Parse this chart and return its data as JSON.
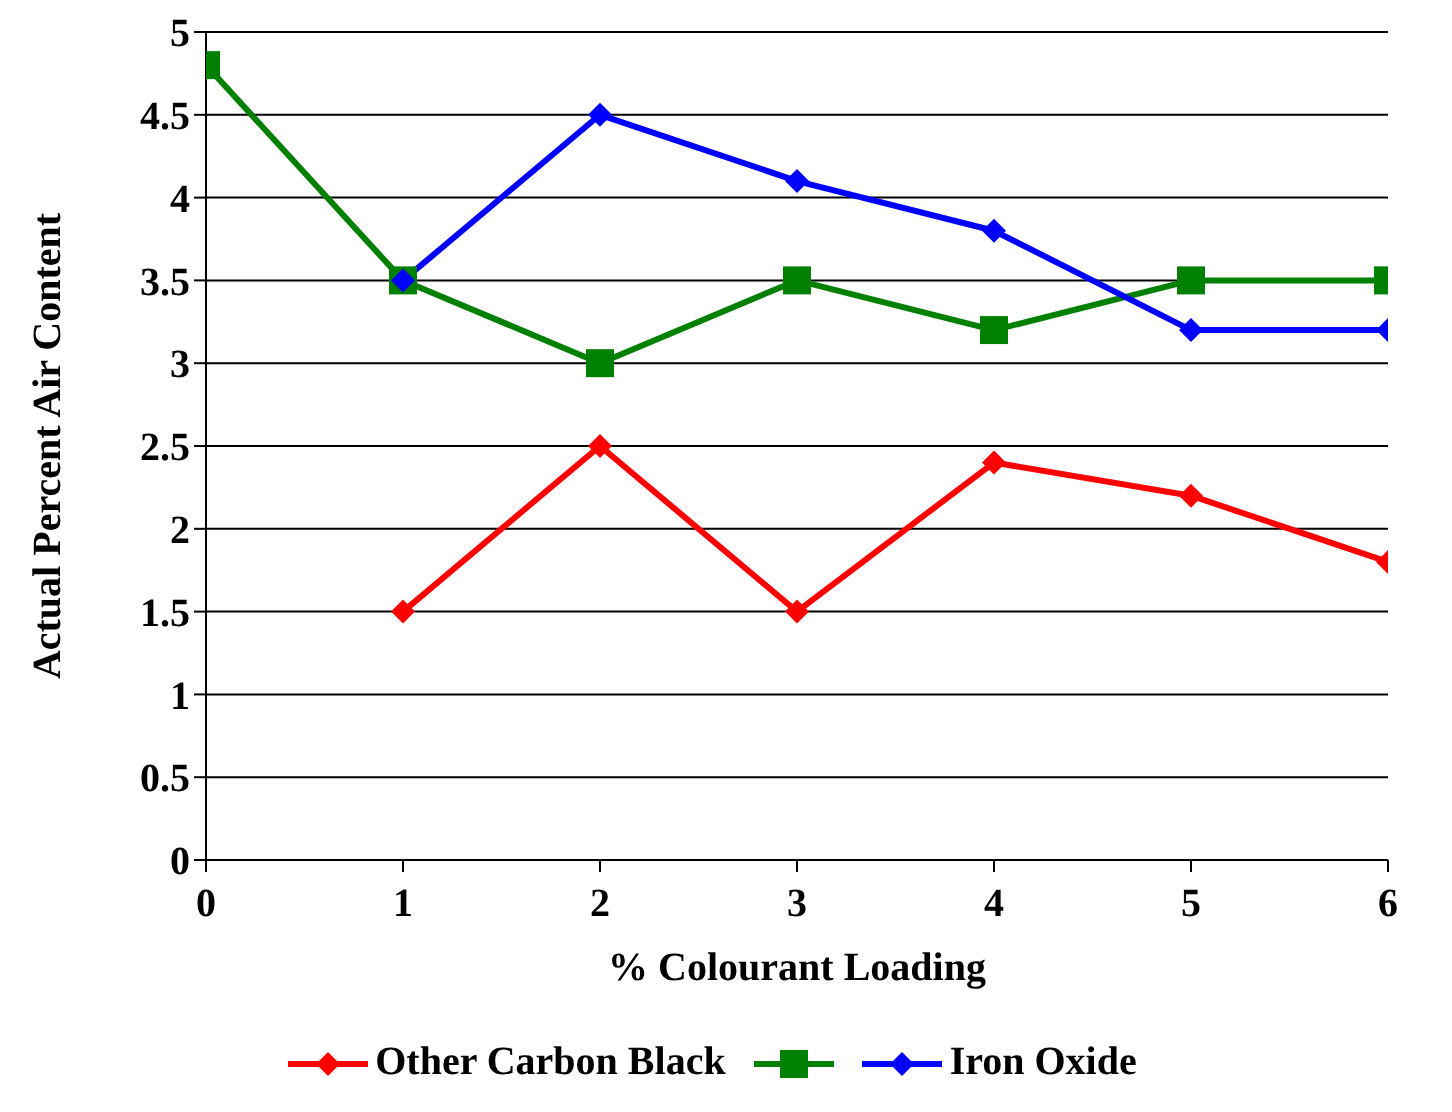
{
  "chart_data": {
    "type": "line",
    "xlabel": "% Colourant Loading",
    "ylabel": "Actual Percent Air Content",
    "x": [
      0,
      1,
      2,
      3,
      4,
      5,
      6
    ],
    "xlim": [
      0,
      6
    ],
    "xticks": [
      0,
      1,
      2,
      3,
      4,
      5,
      6
    ],
    "ylim": [
      0,
      5
    ],
    "yticks": [
      0,
      0.5,
      1,
      1.5,
      2,
      2.5,
      3,
      3.5,
      4,
      4.5,
      5
    ],
    "grid": "y",
    "legend": "bottom",
    "line_style": "solid",
    "series": [
      {
        "name": "Other Carbon Black",
        "color": "#ff0000",
        "marker": "diamond",
        "values": [
          null,
          1.5,
          2.5,
          1.5,
          2.4,
          2.2,
          1.8
        ]
      },
      {
        "color": "#008000",
        "marker": "square",
        "values": [
          4.8,
          3.5,
          3.0,
          3.5,
          3.2,
          3.5,
          3.5
        ]
      },
      {
        "name": "Iron Oxide",
        "color": "#0000ff",
        "marker": "diamond",
        "values": [
          null,
          3.5,
          4.5,
          4.1,
          3.8,
          3.2,
          3.2
        ]
      }
    ]
  }
}
